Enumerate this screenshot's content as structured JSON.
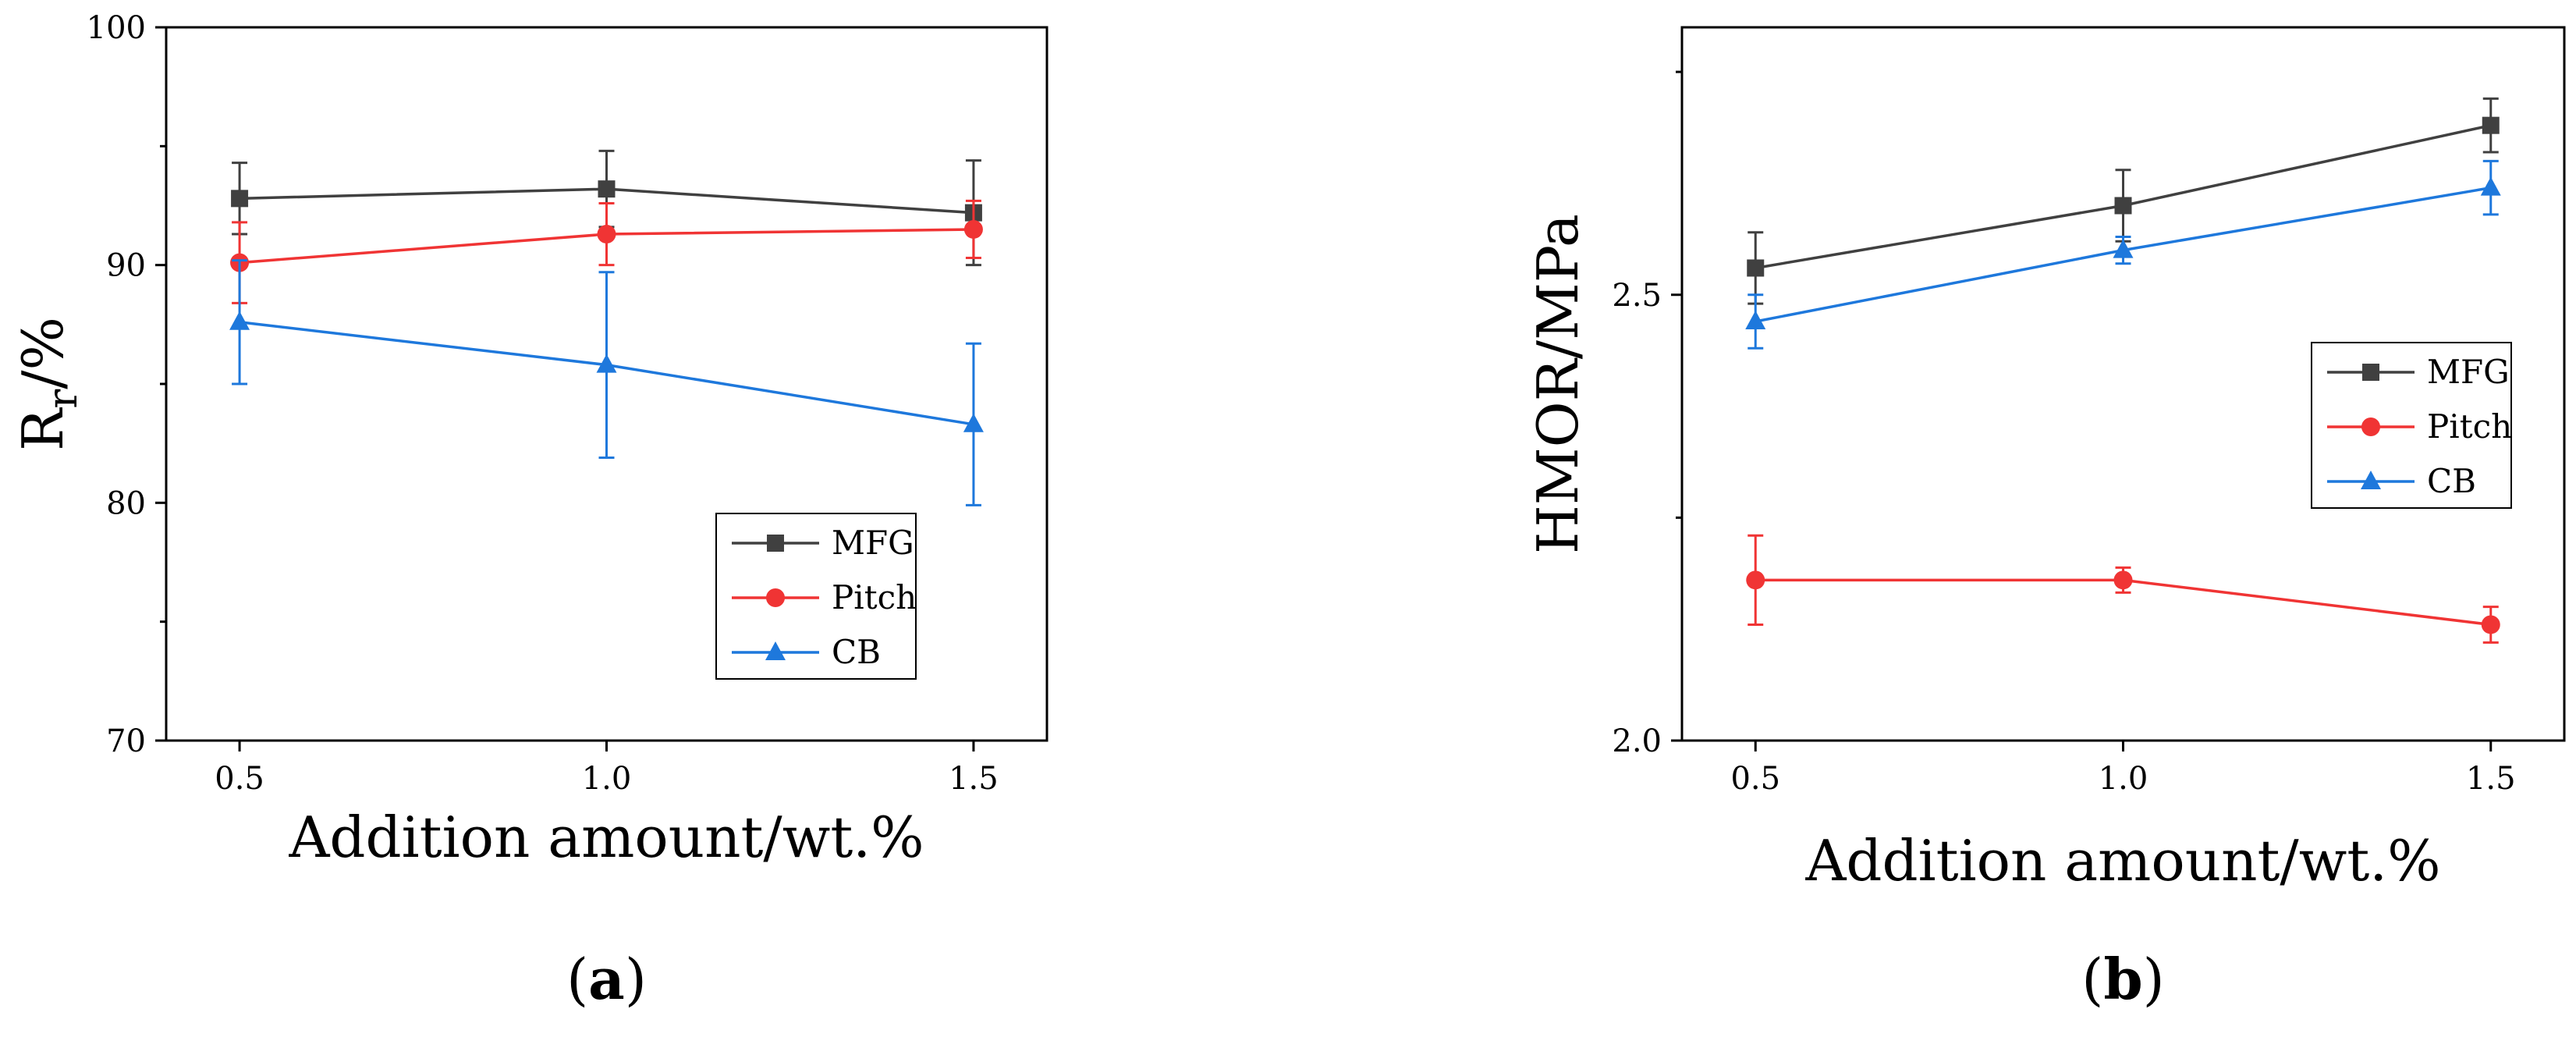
{
  "chart_data": [
    {
      "id": "a",
      "type": "line",
      "panel_label": "a",
      "xlabel": "Addition amount/wt.%",
      "ylabel_main": "R",
      "ylabel_sub": "r",
      "ylabel_suffix": "/%",
      "xlim": [
        0.4,
        1.6
      ],
      "ylim": [
        70,
        100
      ],
      "xticks": [
        0.5,
        1.0,
        1.5
      ],
      "xtick_labels": [
        "0.5",
        "1.0",
        "1.5"
      ],
      "yticks": [
        70,
        80,
        90,
        100
      ],
      "ytick_labels": [
        "70",
        "80",
        "90",
        "100"
      ],
      "yminor": [
        75,
        85,
        95
      ],
      "legend_position": "bottom-right",
      "series": [
        {
          "name": "MFG",
          "color": "#404040",
          "marker": "square",
          "x": [
            0.5,
            1.0,
            1.5
          ],
          "y": [
            92.8,
            93.2,
            92.2
          ],
          "err": [
            1.5,
            1.6,
            2.2
          ]
        },
        {
          "name": "Pitch",
          "color": "#f03434",
          "marker": "circle",
          "x": [
            0.5,
            1.0,
            1.5
          ],
          "y": [
            90.1,
            91.3,
            91.5
          ],
          "err": [
            1.7,
            1.3,
            1.2
          ]
        },
        {
          "name": "CB",
          "color": "#1e78dc",
          "marker": "triangle",
          "x": [
            0.5,
            1.0,
            1.5
          ],
          "y": [
            87.6,
            85.8,
            83.3
          ],
          "err": [
            2.6,
            3.9,
            3.4
          ]
        }
      ]
    },
    {
      "id": "b",
      "type": "line",
      "panel_label": "b",
      "xlabel": "Addition amount/wt.%",
      "ylabel_main": "HMOR/MPa",
      "ylabel_sub": "",
      "ylabel_suffix": "",
      "xlim": [
        0.4,
        1.6
      ],
      "ylim": [
        2.0,
        2.8
      ],
      "xticks": [
        0.5,
        1.0,
        1.5
      ],
      "xtick_labels": [
        "0.5",
        "1.0",
        "1.5"
      ],
      "yticks": [
        2.0,
        2.5
      ],
      "ytick_labels": [
        "2.0",
        "2.5"
      ],
      "yminor": [
        2.25,
        2.75
      ],
      "legend_position": "center-right",
      "series": [
        {
          "name": "MFG",
          "color": "#404040",
          "marker": "square",
          "x": [
            0.5,
            1.0,
            1.5
          ],
          "y": [
            2.53,
            2.6,
            2.69
          ],
          "err": [
            0.04,
            0.04,
            0.03
          ]
        },
        {
          "name": "Pitch",
          "color": "#f03434",
          "marker": "circle",
          "x": [
            0.5,
            1.0,
            1.5
          ],
          "y": [
            2.18,
            2.18,
            2.13
          ],
          "err": [
            0.05,
            0.014,
            0.02
          ]
        },
        {
          "name": "CB",
          "color": "#1e78dc",
          "marker": "triangle",
          "x": [
            0.5,
            1.0,
            1.5
          ],
          "y": [
            2.47,
            2.55,
            2.62
          ],
          "err": [
            0.03,
            0.015,
            0.03
          ]
        }
      ]
    }
  ]
}
